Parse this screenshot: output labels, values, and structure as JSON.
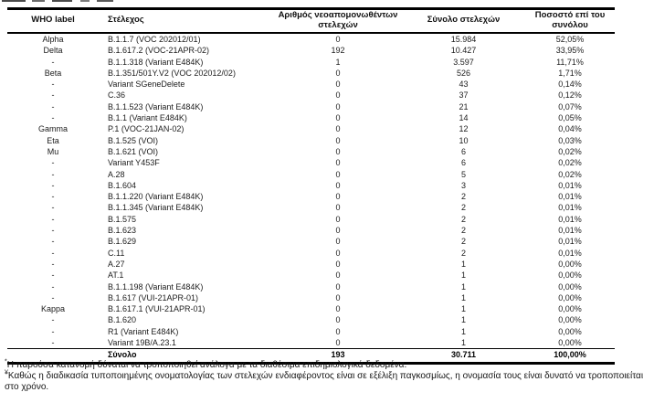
{
  "table": {
    "columns": [
      "WHO label",
      "Στέλεχος",
      "Αριθμός νεοαπομονωθέντων στελεχών",
      "Σύνολο στελεχών",
      "Ποσοστό επί του συνόλου"
    ],
    "rows": [
      {
        "who": "Alpha",
        "strain": "B.1.1.7 (VOC 202012/01)",
        "new_isolates": "0",
        "total": "15.984",
        "pct": "52,05%"
      },
      {
        "who": "Delta",
        "strain": "B.1.617.2 (VOC-21APR-02)",
        "new_isolates": "192",
        "total": "10.427",
        "pct": "33,95%"
      },
      {
        "who": "-",
        "strain": "B.1.1.318 (Variant E484K)",
        "new_isolates": "1",
        "total": "3.597",
        "pct": "11,71%"
      },
      {
        "who": "Beta",
        "strain": "B.1.351/501Y.V2 (VOC 202012/02)",
        "new_isolates": "0",
        "total": "526",
        "pct": "1,71%"
      },
      {
        "who": "-",
        "strain": "Variant SGeneDelete",
        "new_isolates": "0",
        "total": "43",
        "pct": "0,14%"
      },
      {
        "who": "-",
        "strain": "C.36",
        "new_isolates": "0",
        "total": "37",
        "pct": "0,12%"
      },
      {
        "who": "-",
        "strain": "B.1.1.523 (Variant E484K)",
        "new_isolates": "0",
        "total": "21",
        "pct": "0,07%"
      },
      {
        "who": "-",
        "strain": "B.1.1 (Variant E484K)",
        "new_isolates": "0",
        "total": "14",
        "pct": "0,05%"
      },
      {
        "who": "Gamma",
        "strain": "P.1 (VOC-21JAN-02)",
        "new_isolates": "0",
        "total": "12",
        "pct": "0,04%"
      },
      {
        "who": "Eta",
        "strain": "B.1.525 (VOI)",
        "new_isolates": "0",
        "total": "10",
        "pct": "0,03%"
      },
      {
        "who": "Mu",
        "strain": "B.1.621 (VOI)",
        "new_isolates": "0",
        "total": "6",
        "pct": "0,02%"
      },
      {
        "who": "-",
        "strain": "Variant Y453F",
        "new_isolates": "0",
        "total": "6",
        "pct": "0,02%"
      },
      {
        "who": "-",
        "strain": "A.28",
        "new_isolates": "0",
        "total": "5",
        "pct": "0,02%"
      },
      {
        "who": "-",
        "strain": "B.1.604",
        "new_isolates": "0",
        "total": "3",
        "pct": "0,01%"
      },
      {
        "who": "-",
        "strain": "B.1.1.220 (Variant E484K)",
        "new_isolates": "0",
        "total": "2",
        "pct": "0,01%"
      },
      {
        "who": "-",
        "strain": "B.1.1.345 (Variant E484K)",
        "new_isolates": "0",
        "total": "2",
        "pct": "0,01%"
      },
      {
        "who": "-",
        "strain": "B.1.575",
        "new_isolates": "0",
        "total": "2",
        "pct": "0,01%"
      },
      {
        "who": "-",
        "strain": "B.1.623",
        "new_isolates": "0",
        "total": "2",
        "pct": "0,01%"
      },
      {
        "who": "-",
        "strain": "B.1.629",
        "new_isolates": "0",
        "total": "2",
        "pct": "0,01%"
      },
      {
        "who": "-",
        "strain": "C.11",
        "new_isolates": "0",
        "total": "2",
        "pct": "0,01%"
      },
      {
        "who": "-",
        "strain": "A.27",
        "new_isolates": "0",
        "total": "1",
        "pct": "0,00%"
      },
      {
        "who": "-",
        "strain": "AT.1",
        "new_isolates": "0",
        "total": "1",
        "pct": "0,00%"
      },
      {
        "who": "-",
        "strain": "B.1.1.198 (Variant E484K)",
        "new_isolates": "0",
        "total": "1",
        "pct": "0,00%"
      },
      {
        "who": "-",
        "strain": "B.1.617 (VUI-21APR-01)",
        "new_isolates": "0",
        "total": "1",
        "pct": "0,00%"
      },
      {
        "who": "Kappa",
        "strain": "B.1.617.1 (VUI-21APR-01)",
        "new_isolates": "0",
        "total": "1",
        "pct": "0,00%"
      },
      {
        "who": "-",
        "strain": "B.1.620",
        "new_isolates": "0",
        "total": "1",
        "pct": "0,00%"
      },
      {
        "who": "-",
        "strain": "R1 (Variant E484K)",
        "new_isolates": "0",
        "total": "1",
        "pct": "0,00%"
      },
      {
        "who": "-",
        "strain": "Variant 19B/A.23.1",
        "new_isolates": "0",
        "total": "1",
        "pct": "0,00%"
      }
    ],
    "total_row": {
      "who": "",
      "label": "Σύνολο",
      "new_isolates": "193",
      "total": "30.711",
      "pct": "100,00%"
    }
  },
  "footnotes": [
    {
      "marker": "*",
      "text": "Η παρούσα κατανομή δύναται να τροποποιηθεί ανάλογα με τα διαθέσιμα επιδημιολογικά δεδομένα."
    },
    {
      "marker": "¥",
      "text": "Καθώς η διαδικασία τυποποιημένης ονοματολογίας των στελεχών ενδιαφέροντος είναι σε εξέλιξη παγκοσμίως, η ονομασία τους είναι δυνατό να τροποποιείται στο χρόνο."
    }
  ]
}
